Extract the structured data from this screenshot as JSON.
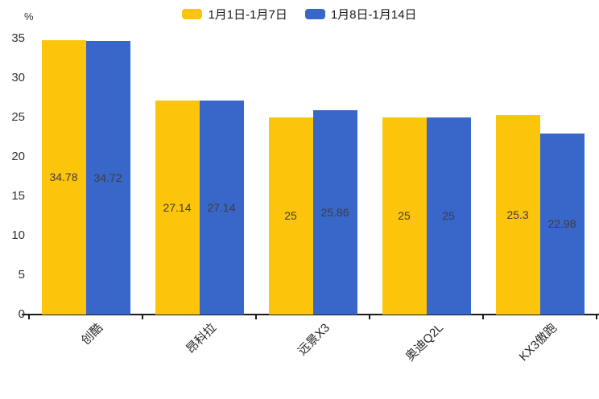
{
  "chart_data": {
    "type": "bar",
    "title": "",
    "xlabel": "",
    "ylabel": "%",
    "ylim": [
      0,
      35
    ],
    "yticks": [
      0,
      5,
      10,
      15,
      20,
      25,
      30,
      35
    ],
    "grid": false,
    "legend_position": "top-center",
    "value_labels": "inside-center",
    "xtick_rotation": 45,
    "categories": [
      "创酷",
      "昂科拉",
      "远景X3",
      "奥迪Q2L",
      "KX3傲跑"
    ],
    "series": [
      {
        "name": "1月1日-1月7日",
        "color": "#FCC40A",
        "values": [
          34.78,
          27.14,
          25,
          25,
          25.3
        ],
        "labels": [
          "34.78",
          "27.14",
          "25",
          "25",
          "25.3"
        ]
      },
      {
        "name": "1月8日-1月14日",
        "color": "#3867C9",
        "values": [
          34.72,
          27.14,
          25.86,
          25,
          22.98
        ],
        "labels": [
          "34.72",
          "27.14",
          "25.86",
          "25",
          "22.98"
        ]
      }
    ]
  },
  "colors": {
    "axis": "#1a1a1a",
    "tick_text": "#333333",
    "value_text": "#3d3d3d",
    "background": "#ffffff"
  }
}
